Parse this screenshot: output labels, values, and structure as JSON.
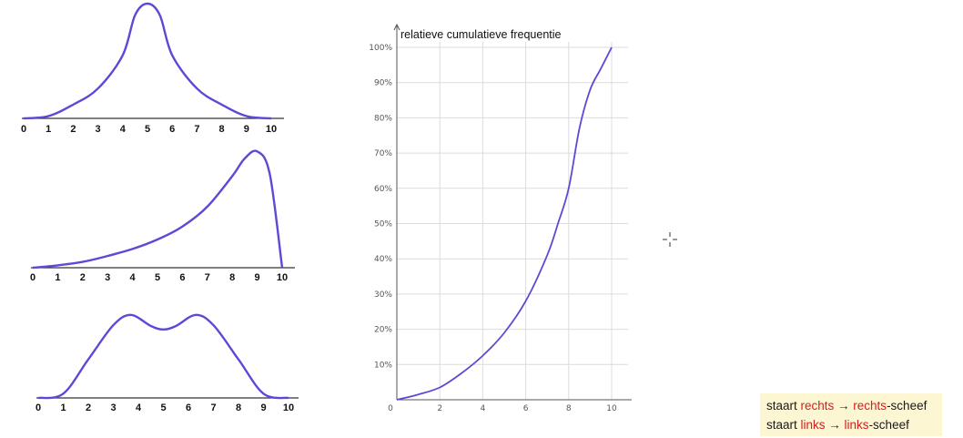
{
  "chart_data": [
    {
      "type": "line",
      "x_ticks": [
        "0",
        "1",
        "2",
        "3",
        "4",
        "5",
        "6",
        "7",
        "8",
        "9",
        "10"
      ],
      "x": [
        0,
        1,
        2,
        3,
        4,
        4.5,
        5,
        5.5,
        6,
        7,
        8,
        9,
        10
      ],
      "y": [
        0.0,
        0.02,
        0.12,
        0.26,
        0.55,
        0.9,
        1.0,
        0.9,
        0.55,
        0.26,
        0.12,
        0.02,
        0.0
      ],
      "color": "#5b4ad6"
    },
    {
      "type": "line",
      "x_ticks": [
        "0",
        "1",
        "2",
        "3",
        "4",
        "5",
        "6",
        "7",
        "8",
        "9",
        "10"
      ],
      "x": [
        0,
        1,
        2,
        3,
        4,
        5,
        6,
        7,
        8,
        8.5,
        9,
        9.5,
        10
      ],
      "y": [
        0.0,
        0.02,
        0.05,
        0.1,
        0.16,
        0.24,
        0.35,
        0.52,
        0.78,
        0.93,
        0.99,
        0.8,
        0.0
      ],
      "color": "#5b4ad6"
    },
    {
      "type": "line",
      "x_ticks": [
        "0",
        "1",
        "2",
        "3",
        "4",
        "5",
        "6",
        "7",
        "8",
        "9",
        "10"
      ],
      "x": [
        0,
        1,
        2,
        3,
        3.7,
        4.5,
        5,
        5.5,
        6.3,
        7,
        8,
        9,
        10
      ],
      "y": [
        0.0,
        0.05,
        0.45,
        0.85,
        0.97,
        0.84,
        0.8,
        0.84,
        0.97,
        0.85,
        0.45,
        0.05,
        0.0
      ],
      "color": "#5b4ad6"
    },
    {
      "type": "line",
      "title": "relatieve cumulatieve frequentie",
      "x_ticks": [
        "0",
        "2",
        "4",
        "6",
        "8",
        "10"
      ],
      "y_ticks": [
        "10%",
        "20%",
        "30%",
        "40%",
        "50%",
        "60%",
        "70%",
        "80%",
        "90%",
        "100%"
      ],
      "xlim": [
        0,
        10
      ],
      "ylim": [
        0,
        100
      ],
      "grid": true,
      "x": [
        0,
        1,
        2,
        3,
        4,
        5,
        6,
        7,
        7.5,
        8,
        8.5,
        9,
        9.5,
        10
      ],
      "y": [
        0,
        1.5,
        3.5,
        7.5,
        12.5,
        19,
        28,
        41,
        50,
        60,
        77,
        88,
        94,
        100
      ],
      "color": "#5b4ad6"
    }
  ],
  "note": {
    "line1": {
      "pre": "staart ",
      "word": "rechts",
      "arrow": " → ",
      "word2": "rechts",
      "post": "-scheef"
    },
    "line2": {
      "pre": "staart ",
      "word": "links",
      "arrow": " → ",
      "word2": "links",
      "post": "-scheef"
    }
  }
}
